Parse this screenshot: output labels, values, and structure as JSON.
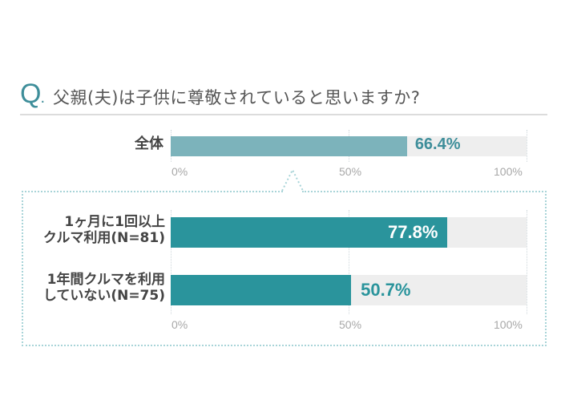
{
  "header": {
    "q_mark": "Q",
    "q_dot": ".",
    "question": "父親(夫)は子供に尊敬されていると思いますか?"
  },
  "overall": {
    "label": "全体",
    "value": 66.4,
    "value_label": "66.4%",
    "bar_color": "#7cb3bb",
    "value_color": "#3e8e9a"
  },
  "segments": [
    {
      "label_line1": "1ヶ月に1回以上",
      "label_line2": "クルマ利用(N=81)",
      "value": 77.8,
      "value_label": "77.8%",
      "bar_color": "#2a949c",
      "value_color": "#ffffff"
    },
    {
      "label_line1": "1年間クルマを利用",
      "label_line2": "していない(N=75)",
      "value": 50.7,
      "value_label": "50.7%",
      "bar_color": "#2a949c",
      "value_color": "#2a949c"
    }
  ],
  "axis": {
    "ticks": [
      "0%",
      "50%",
      "100%"
    ]
  },
  "chart_data": {
    "type": "bar",
    "orientation": "horizontal",
    "title": "Q. 父親(夫)は子供に尊敬されていると思いますか?",
    "categories": [
      "全体",
      "1ヶ月に1回以上クルマ利用(N=81)",
      "1年間クルマを利用していない(N=75)"
    ],
    "values": [
      66.4,
      77.8,
      50.7
    ],
    "unit": "%",
    "xlim": [
      0,
      100
    ],
    "xticks": [
      "0%",
      "50%",
      "100%"
    ],
    "grid": true,
    "legend": null,
    "xlabel": "",
    "ylabel": ""
  }
}
